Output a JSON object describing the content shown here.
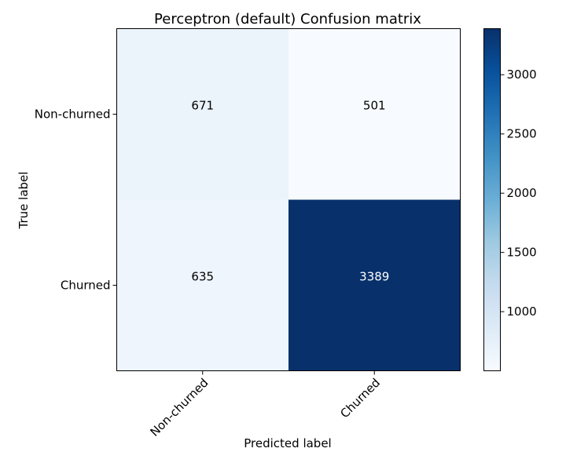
{
  "chart_data": {
    "type": "heatmap",
    "title": "Perceptron (default) Confusion matrix",
    "xlabel": "Predicted label",
    "ylabel": "True label",
    "x_categories": [
      "Non-churned",
      "Churned"
    ],
    "y_categories": [
      "Non-churned",
      "Churned"
    ],
    "values": [
      [
        671,
        501
      ],
      [
        635,
        3389
      ]
    ],
    "colormap": "Blues",
    "color_range": [
      501,
      3389
    ],
    "colorbar_ticks": [
      1000,
      1500,
      2000,
      2500,
      3000
    ],
    "grid": false,
    "colorbar_position": "right"
  }
}
